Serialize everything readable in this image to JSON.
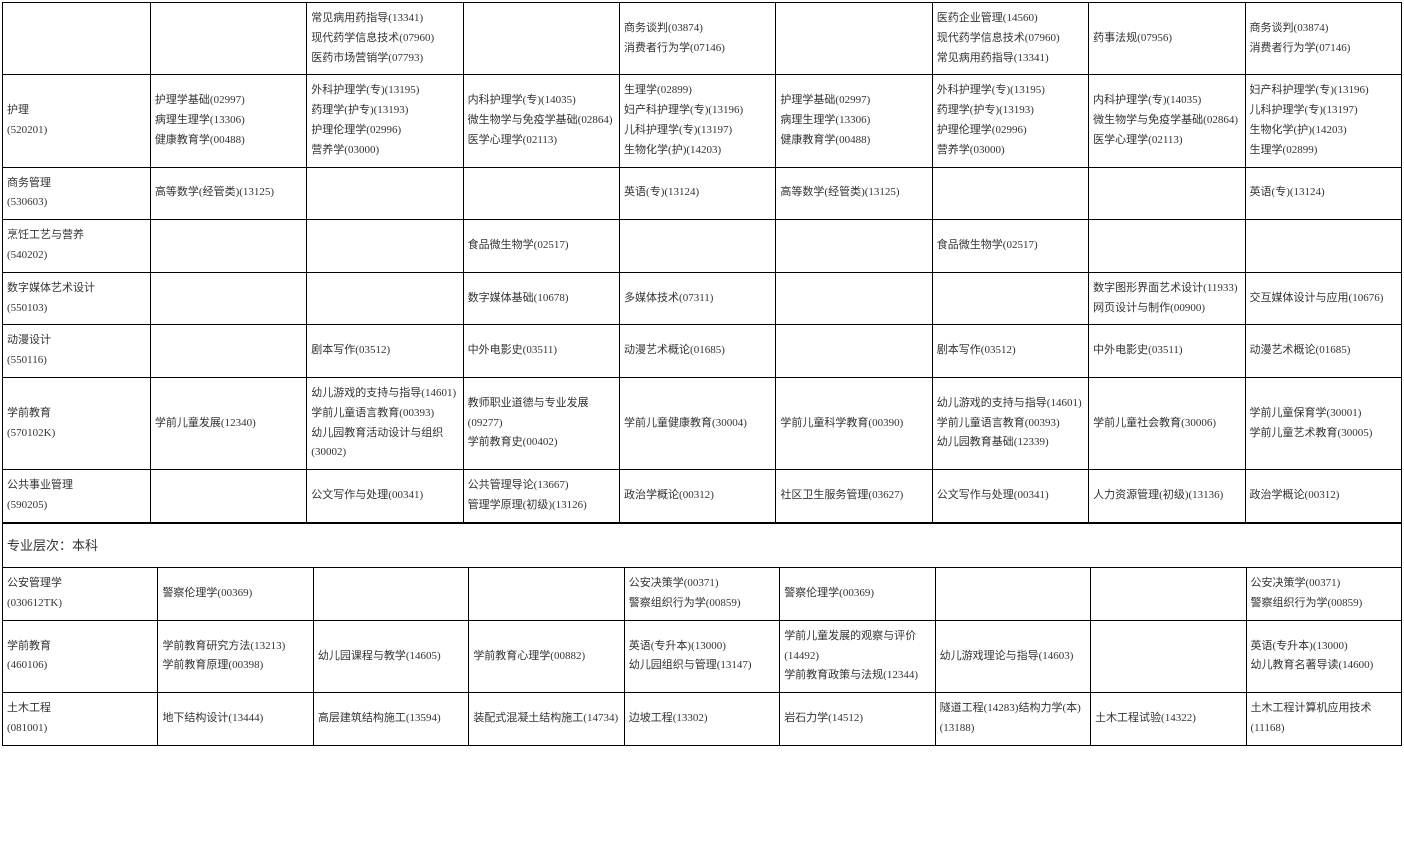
{
  "rows": [
    {
      "c0": "",
      "c1": "",
      "c2": "常见病用药指导(13341)\n现代药学信息技术(07960)\n医药市场营销学(07793)",
      "c3": "",
      "c4": "商务谈判(03874)\n消费者行为学(07146)",
      "c5": "",
      "c6": "医药企业管理(14560)\n现代药学信息技术(07960)\n常见病用药指导(13341)",
      "c7": "药事法规(07956)",
      "c8": "商务谈判(03874)\n消费者行为学(07146)"
    },
    {
      "c0": "护理\n(520201)",
      "c1": "护理学基础(02997)\n病理生理学(13306)\n健康教育学(00488)",
      "c2": "外科护理学(专)(13195)\n药理学(护专)(13193)\n护理伦理学(02996)\n营养学(03000)",
      "c3": "内科护理学(专)(14035)\n微生物学与免疫学基础(02864)\n医学心理学(02113)",
      "c4": "生理学(02899)\n妇产科护理学(专)(13196)\n儿科护理学(专)(13197)\n生物化学(护)(14203)",
      "c5": "护理学基础(02997)\n病理生理学(13306)\n健康教育学(00488)",
      "c6": "外科护理学(专)(13195)\n药理学(护专)(13193)\n护理伦理学(02996)\n营养学(03000)",
      "c7": "内科护理学(专)(14035)\n微生物学与免疫学基础(02864)\n医学心理学(02113)",
      "c8": "妇产科护理学(专)(13196)\n儿科护理学(专)(13197)\n生物化学(护)(14203)\n生理学(02899)"
    },
    {
      "c0": "商务管理\n(530603)",
      "c1": "高等数学(经管类)(13125)",
      "c2": "",
      "c3": "",
      "c4": "英语(专)(13124)",
      "c5": "高等数学(经管类)(13125)",
      "c6": "",
      "c7": "",
      "c8": "英语(专)(13124)"
    },
    {
      "c0": "烹饪工艺与营养\n(540202)",
      "c1": "",
      "c2": "",
      "c3": "食品微生物学(02517)",
      "c4": "",
      "c5": "",
      "c6": "食品微生物学(02517)",
      "c7": "",
      "c8": ""
    },
    {
      "c0": "数字媒体艺术设计\n(550103)",
      "c1": "",
      "c2": "",
      "c3": "数字媒体基础(10678)",
      "c4": "多媒体技术(07311)",
      "c5": "",
      "c6": "",
      "c7": "数字图形界面艺术设计(11933)\n网页设计与制作(00900)",
      "c8": "交互媒体设计与应用(10676)"
    },
    {
      "c0": "动漫设计\n(550116)",
      "c1": "",
      "c2": "剧本写作(03512)",
      "c3": "中外电影史(03511)",
      "c4": "动漫艺术概论(01685)",
      "c5": "",
      "c6": "剧本写作(03512)",
      "c7": "中外电影史(03511)",
      "c8": "动漫艺术概论(01685)"
    },
    {
      "c0": "学前教育\n(570102K)",
      "c1": "学前儿童发展(12340)",
      "c2": "幼儿游戏的支持与指导(14601)\n学前儿童语言教育(00393)\n幼儿园教育活动设计与组织(30002)",
      "c3": "教师职业道德与专业发展(09277)\n学前教育史(00402)",
      "c4": "学前儿童健康教育(30004)",
      "c5": "学前儿童科学教育(00390)",
      "c6": "幼儿游戏的支持与指导(14601)\n学前儿童语言教育(00393)\n幼儿园教育基础(12339)",
      "c7": "学前儿童社会教育(30006)",
      "c8": "学前儿童保育学(30001)\n学前儿童艺术教育(30005)"
    },
    {
      "c0": "公共事业管理\n(590205)",
      "c1": "",
      "c2": "公文写作与处理(00341)",
      "c3": "公共管理导论(13667)\n管理学原理(初级)(13126)",
      "c4": "政治学概论(00312)",
      "c5": "社区卫生服务管理(03627)",
      "c6": "公文写作与处理(00341)",
      "c7": "人力资源管理(初级)(13136)",
      "c8": "政治学概论(00312)"
    }
  ],
  "section_header": "专业层次：本科",
  "rows2": [
    {
      "c0": "公安管理学\n(030612TK)",
      "c1": "警察伦理学(00369)",
      "c2": "",
      "c3": "",
      "c4": "公安决策学(00371)\n警察组织行为学(00859)",
      "c5": "警察伦理学(00369)",
      "c6": "",
      "c7": "",
      "c8": "公安决策学(00371)\n警察组织行为学(00859)"
    },
    {
      "c0": "学前教育\n(460106)",
      "c1": "学前教育研究方法(13213)\n学前教育原理(00398)",
      "c2": "幼儿园课程与教学(14605)",
      "c3": "学前教育心理学(00882)",
      "c4": "英语(专升本)(13000)\n幼儿园组织与管理(13147)",
      "c5": "学前儿童发展的观察与评价(14492)\n学前教育政策与法规(12344)",
      "c6": "幼儿游戏理论与指导(14603)",
      "c7": "",
      "c8": "英语(专升本)(13000)\n幼儿教育名著导读(14600)"
    },
    {
      "c0": "土木工程\n(081001)",
      "c1": "地下结构设计(13444)",
      "c2": "高层建筑结构施工(13594)",
      "c3": "装配式混凝土结构施工(14734)",
      "c4": "边坡工程(13302)",
      "c5": "岩石力学(14512)",
      "c6": "隧道工程(14283)结构力学(本)(13188)",
      "c7": "土木工程试验(14322)",
      "c8": "土木工程计算机应用技术(11168)"
    }
  ]
}
